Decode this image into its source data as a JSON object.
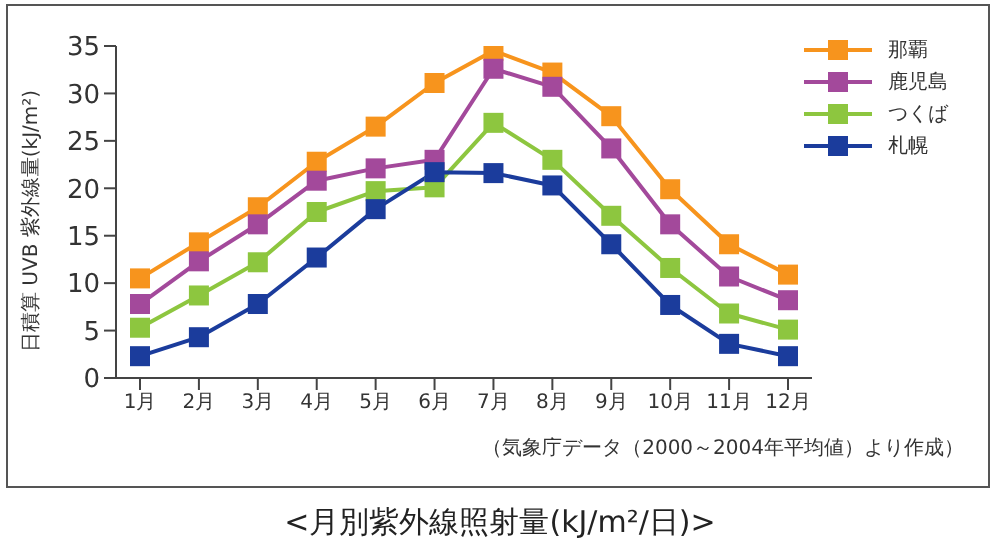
{
  "chart_data": {
    "type": "line",
    "title": "<月別紫外線照射量(kJ/m²/日)>",
    "ylabel": "日積算 UVB 紫外線量(kJ/m²)",
    "annotations": [
      "（気象庁データ（2000～2004年平均値）より作成）"
    ],
    "categories": [
      "1月",
      "2月",
      "3月",
      "4月",
      "5月",
      "6月",
      "7月",
      "8月",
      "9月",
      "10月",
      "11月",
      "12月"
    ],
    "series": [
      {
        "name": "那覇",
        "color": "#f7941d",
        "values": [
          10.5,
          14.3,
          18.0,
          22.8,
          26.5,
          31.1,
          34.5,
          32.2,
          27.6,
          19.9,
          14.1,
          10.9
        ]
      },
      {
        "name": "鹿児島",
        "color": "#a3499b",
        "values": [
          7.8,
          12.3,
          16.2,
          20.8,
          22.1,
          23.0,
          32.6,
          30.7,
          24.2,
          16.2,
          10.7,
          8.2
        ]
      },
      {
        "name": "つくば",
        "color": "#8dc63f",
        "values": [
          5.3,
          8.7,
          12.2,
          17.5,
          19.7,
          20.1,
          26.9,
          23.0,
          17.1,
          11.6,
          6.8,
          5.1
        ]
      },
      {
        "name": "札幌",
        "color": "#1b3c9c",
        "values": [
          2.3,
          4.3,
          7.8,
          12.7,
          17.8,
          21.7,
          21.6,
          20.3,
          14.1,
          7.7,
          3.6,
          2.3
        ]
      }
    ],
    "ylim": [
      0,
      35
    ],
    "yticks": [
      0,
      5,
      10,
      15,
      20,
      25,
      30,
      35
    ],
    "grid": false,
    "legend": "top right",
    "marker": "square",
    "line_style": "solid"
  }
}
